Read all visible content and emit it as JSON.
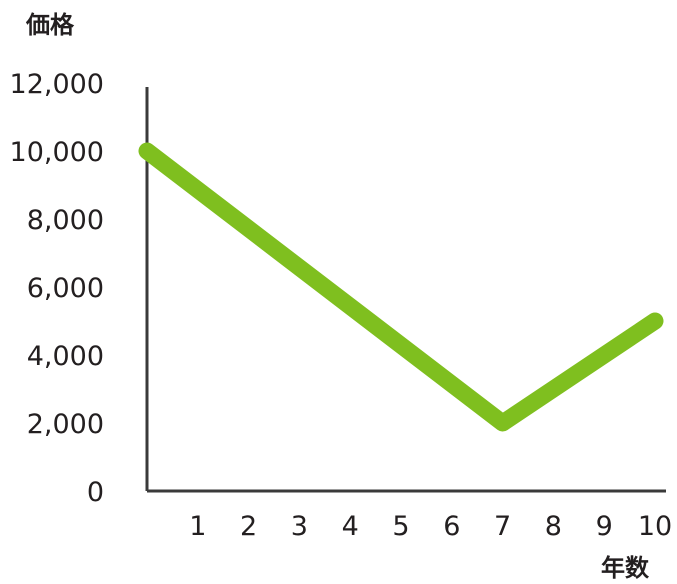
{
  "chart_data": {
    "type": "line",
    "title": "",
    "xlabel": "年数",
    "ylabel": "価格",
    "x": [
      0,
      7,
      10
    ],
    "series": [
      {
        "values": [
          10000,
          2000,
          5000
        ],
        "color": "#7fbf1f"
      }
    ],
    "xticks": [
      "1",
      "2",
      "3",
      "4",
      "5",
      "6",
      "7",
      "8",
      "9",
      "10"
    ],
    "yticks": [
      "0",
      "2,000",
      "4,000",
      "6,000",
      "8,000",
      "10,000",
      "12,000"
    ],
    "xlim": [
      0,
      10
    ],
    "ylim": [
      0,
      12000
    ],
    "grid": false,
    "legend": "none",
    "axis_color": "#3a3a3a"
  }
}
